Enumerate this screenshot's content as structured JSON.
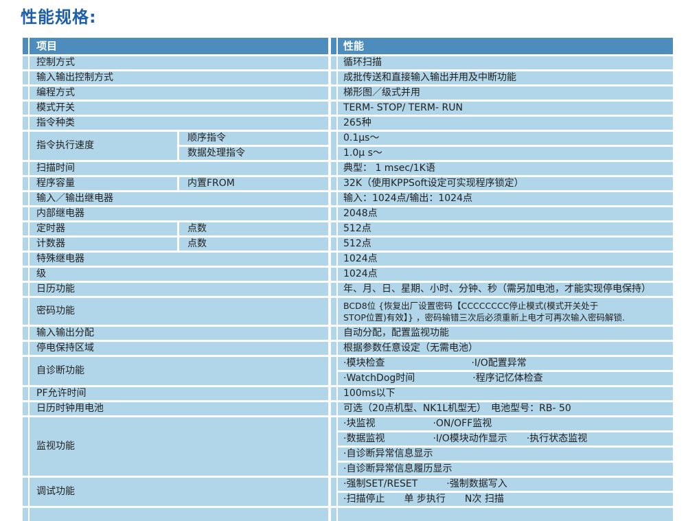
{
  "title": "性能规格:",
  "colors": {
    "header_bg": "#4c8dbe",
    "row_bg": "#b2d6e9",
    "title_color": "#1c5ea8"
  },
  "table": {
    "header": {
      "item": "项目",
      "performance": "性能"
    },
    "rows": [
      {
        "item": "控制方式",
        "value": "循环扫描"
      },
      {
        "item": "输入输出控制方式",
        "value": "成批传送和直接输入输出并用及中断功能"
      },
      {
        "item": "编程方式",
        "value": "梯形图／级式并用"
      },
      {
        "item": "模式开关",
        "value": "TERM- STOP/ TERM- RUN"
      },
      {
        "item": "指令种类",
        "value": "265种"
      },
      {
        "item": "指令执行速度",
        "subs": [
          {
            "sub": "顺序指令",
            "value": "0.1μs～"
          },
          {
            "sub": "数据处理指令",
            "value": "1.0μ s～"
          }
        ]
      },
      {
        "item": "扫描时间",
        "value": "典型： 1 msec/1K语"
      },
      {
        "item": "程序容量",
        "sub": "内置FROM",
        "value": "32K（使用KPPSoft设定可实现程序锁定）"
      },
      {
        "item": "输入／输出继电器",
        "value": "输入：1024点/输出：1024点"
      },
      {
        "item": "内部继电器",
        "value": "2048点"
      },
      {
        "item": "定时器",
        "sub": "点数",
        "value": "512点"
      },
      {
        "item": "计数器",
        "sub": "点数",
        "value": "512点"
      },
      {
        "item": "特殊继电器",
        "value": "1024点"
      },
      {
        "item": "级",
        "value": "1024点"
      },
      {
        "item": "日历功能",
        "value": "年、月、日、星期、小时、分钟、秒（需另加电池，才能实现停电保持）"
      },
      {
        "item": "密码功能",
        "value_lines": [
          "BCD8位 {恢复出厂设置密码【CCCCCCCC停止模式(模式开关处于",
          "STOP位置)有效】} ，密码输错三次后必须重新上电才可再次输入密码解锁."
        ]
      },
      {
        "item": "输入输出分配",
        "value": "自动分配，配置监视功能"
      },
      {
        "item": "停电保持区域",
        "value": "根据参数任意设定（无需电池）"
      },
      {
        "item": "自诊断功能",
        "values": [
          "·模块检查　　　　　　　　　·I/O配置异常",
          "·WatchDog时间　　　　　　·程序记忆体检查"
        ]
      },
      {
        "item": "PF允许时间",
        "value": "100ms以下"
      },
      {
        "item": "日历时钟用电池",
        "value": "可选（20点机型、NK1L机型无）　电池型号：RB- 50"
      },
      {
        "item": "监视功能",
        "values": [
          "·块监视　　　　　　·ON/OFF监视",
          "·数据监视　　　　　·I/O模块动作显示　　·执行状态监视",
          "·自诊断异常信息显示",
          "·自诊断异常信息履历显示"
        ]
      },
      {
        "item": "调试功能",
        "values": [
          "·强制SET/RESET　　　·强制数据写入",
          "·扫描停止　　单 步执行　　N次 扫描"
        ]
      }
    ]
  }
}
